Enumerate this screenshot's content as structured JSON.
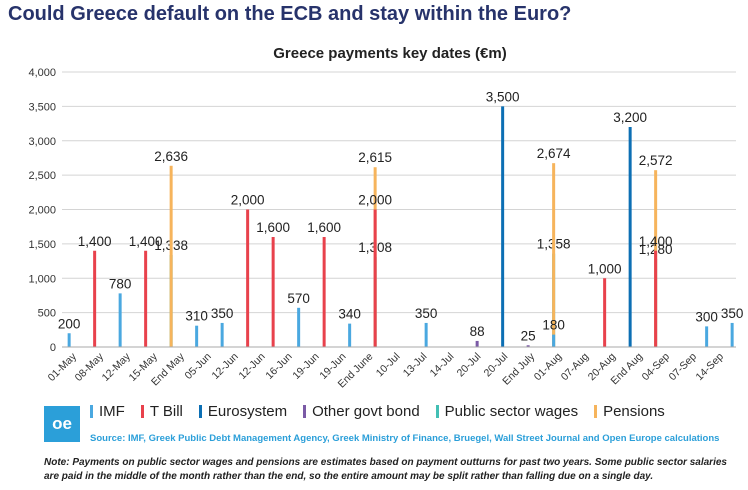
{
  "headline": "Could Greece default on the ECB and stay within the Euro?",
  "logo_text": "oe",
  "source": "Source: IMF, Greek Public Debt Management Agency, Greek Ministry of Finance, Bruegel, Wall Street Journal and Open Europe calculations",
  "note": "Note: Payments on public sector wages and pensions are estimates based on payment outturns for past two years. Some public sector salaries are paid in the middle of the month rather than the end, so the entire amount may be split rather than falling due on a single day.",
  "colors": {
    "IMF": "#4aa8e0",
    "T Bill": "#e8414c",
    "Eurosystem": "#0c6fb4",
    "Other govt bond": "#7b5aa6",
    "Public sector wages": "#43bfb4",
    "Pensions": "#f6b45c"
  },
  "chart_data": {
    "type": "bar",
    "title": "Greece payments key dates (€m)",
    "xlabel": "",
    "ylabel": "",
    "ylim": [
      0,
      4000
    ],
    "yticks": [
      "0",
      "500",
      "1,000",
      "1,500",
      "2,000",
      "2,500",
      "3,000",
      "3,500",
      "4,000"
    ],
    "grid": true,
    "legend_position": "bottom",
    "legend": [
      "IMF",
      "T Bill",
      "Eurosystem",
      "Other govt bond",
      "Public sector wages",
      "Pensions"
    ],
    "categories": [
      "01-May",
      "08-May",
      "12-May",
      "15-May",
      "End May",
      "05-Jun",
      "12-Jun",
      "12-Jun",
      "16-Jun",
      "19-Jun",
      "19-Jun",
      "End June",
      "10-Jul",
      "13-Jul",
      "14-Jul",
      "20-Jul",
      "20-Jul",
      "End July",
      "01-Aug",
      "07-Aug",
      "20-Aug",
      "End Aug",
      "04-Sep",
      "07-Sep",
      "14-Sep"
    ],
    "bars": [
      {
        "category": 0,
        "series": "IMF",
        "value": 200,
        "label": "200"
      },
      {
        "category": 1,
        "series": "T Bill",
        "value": 1400,
        "label": "1,400"
      },
      {
        "category": 2,
        "series": "IMF",
        "value": 780,
        "label": "780"
      },
      {
        "category": 3,
        "series": "T Bill",
        "value": 1400,
        "label": "1,400"
      },
      {
        "category": 4,
        "series": "Public sector wages",
        "value": 1338,
        "label": "1,338"
      },
      {
        "category": 4,
        "series": "Pensions",
        "value": 2636,
        "label": "2,636"
      },
      {
        "category": 5,
        "series": "IMF",
        "value": 310,
        "label": "310"
      },
      {
        "category": 6,
        "series": "IMF",
        "value": 350,
        "label": "350"
      },
      {
        "category": 7,
        "series": "T Bill",
        "value": 2000,
        "label": "2,000"
      },
      {
        "category": 8,
        "series": "T Bill",
        "value": 1600,
        "label": "1,600"
      },
      {
        "category": 9,
        "series": "IMF",
        "value": 570,
        "label": "570"
      },
      {
        "category": 10,
        "series": "T Bill",
        "value": 1600,
        "label": "1,600"
      },
      {
        "category": 11,
        "series": "IMF",
        "value": 340,
        "label": "340"
      },
      {
        "category": 12,
        "series": "Public sector wages",
        "value": 1308,
        "label": "1,308"
      },
      {
        "category": 12,
        "series": "Pensions",
        "value": 2615,
        "label": "2,615"
      },
      {
        "category": 12,
        "series": "T Bill",
        "value": 2000,
        "label": "2,000"
      },
      {
        "category": 14,
        "series": "IMF",
        "value": 350,
        "label": "350"
      },
      {
        "category": 16,
        "series": "Other govt bond",
        "value": 88,
        "label": "88"
      },
      {
        "category": 17,
        "series": "Eurosystem",
        "value": 3500,
        "label": "3,500"
      },
      {
        "category": 18,
        "series": "Other govt bond",
        "value": 25,
        "label": "25"
      },
      {
        "category": 19,
        "series": "Public sector wages",
        "value": 1358,
        "label": "1,358"
      },
      {
        "category": 19,
        "series": "Pensions",
        "value": 2674,
        "label": "2,674"
      },
      {
        "category": 19,
        "series": "IMF",
        "value": 180,
        "label": "180"
      },
      {
        "category": 21,
        "series": "T Bill",
        "value": 1000,
        "label": "1,000"
      },
      {
        "category": 22,
        "series": "Eurosystem",
        "value": 3200,
        "label": "3,200"
      },
      {
        "category": 23,
        "series": "Public sector wages",
        "value": 1280,
        "label": "1,280"
      },
      {
        "category": 23,
        "series": "Pensions",
        "value": 2572,
        "label": "2,572"
      },
      {
        "category": 23,
        "series": "T Bill",
        "value": 1400,
        "label": "1,400"
      },
      {
        "category": 25,
        "series": "IMF",
        "value": 300,
        "label": "300"
      },
      {
        "category": 26,
        "series": "IMF",
        "value": 350,
        "label": "350"
      }
    ]
  }
}
